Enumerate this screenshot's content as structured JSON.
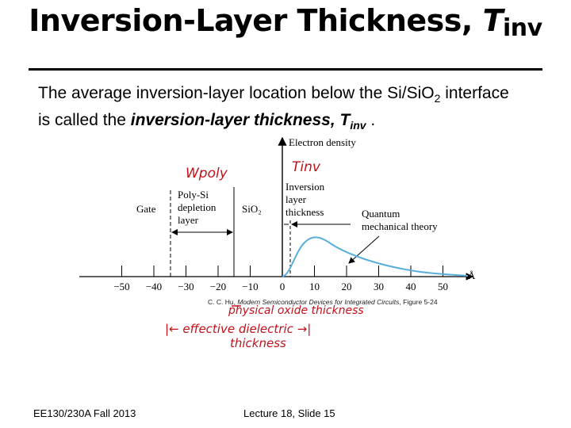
{
  "slide": {
    "title_main": "Inversion-Layer Thickness, ",
    "title_T": "T",
    "title_sub": "inv",
    "body_line1_a": "The average inversion-layer location below the Si/SiO",
    "body_line1_sub": "2",
    "body_line1_b": " interface",
    "body_line2_a": "is called the ",
    "body_line2_em": "inversion-layer thickness, T",
    "body_line2_sub": "inv",
    "body_line2_end": " .",
    "footer_left": "EE130/230A Fall 2013",
    "footer_center": "Lecture 18, Slide 15"
  },
  "figure": {
    "y_axis_label": "Electron density",
    "gate_label": "Gate",
    "depletion_label": [
      "Poly-Si",
      "depletion",
      "layer"
    ],
    "oxide_label": "SiO₂",
    "tinv_label": [
      "Inversion",
      "layer",
      "thickness"
    ],
    "qm_label": [
      "Quantum",
      "mechanical theory"
    ],
    "unit": "Å",
    "ticks": [
      "−50",
      "−40",
      "−30",
      "−20",
      "−10",
      "0",
      "10",
      "20",
      "30",
      "40",
      "50"
    ],
    "tick_values": [
      -50,
      -40,
      -30,
      -20,
      -10,
      0,
      10,
      20,
      30,
      40,
      50
    ],
    "curve_color": "#5aaedc",
    "caption_a": "C. C. Hu, ",
    "caption_italic": "Modern Semiconductor Devices for Integrated Circuits",
    "caption_b": ", Figure 5-24",
    "hand_wpoly": "Wpoly",
    "hand_tinv": "Tinv",
    "hand_phys": "physical oxide thickness",
    "hand_eff1": "|← effective dielectric →|",
    "hand_eff2": "thickness",
    "hand_color": "#c0121b"
  }
}
